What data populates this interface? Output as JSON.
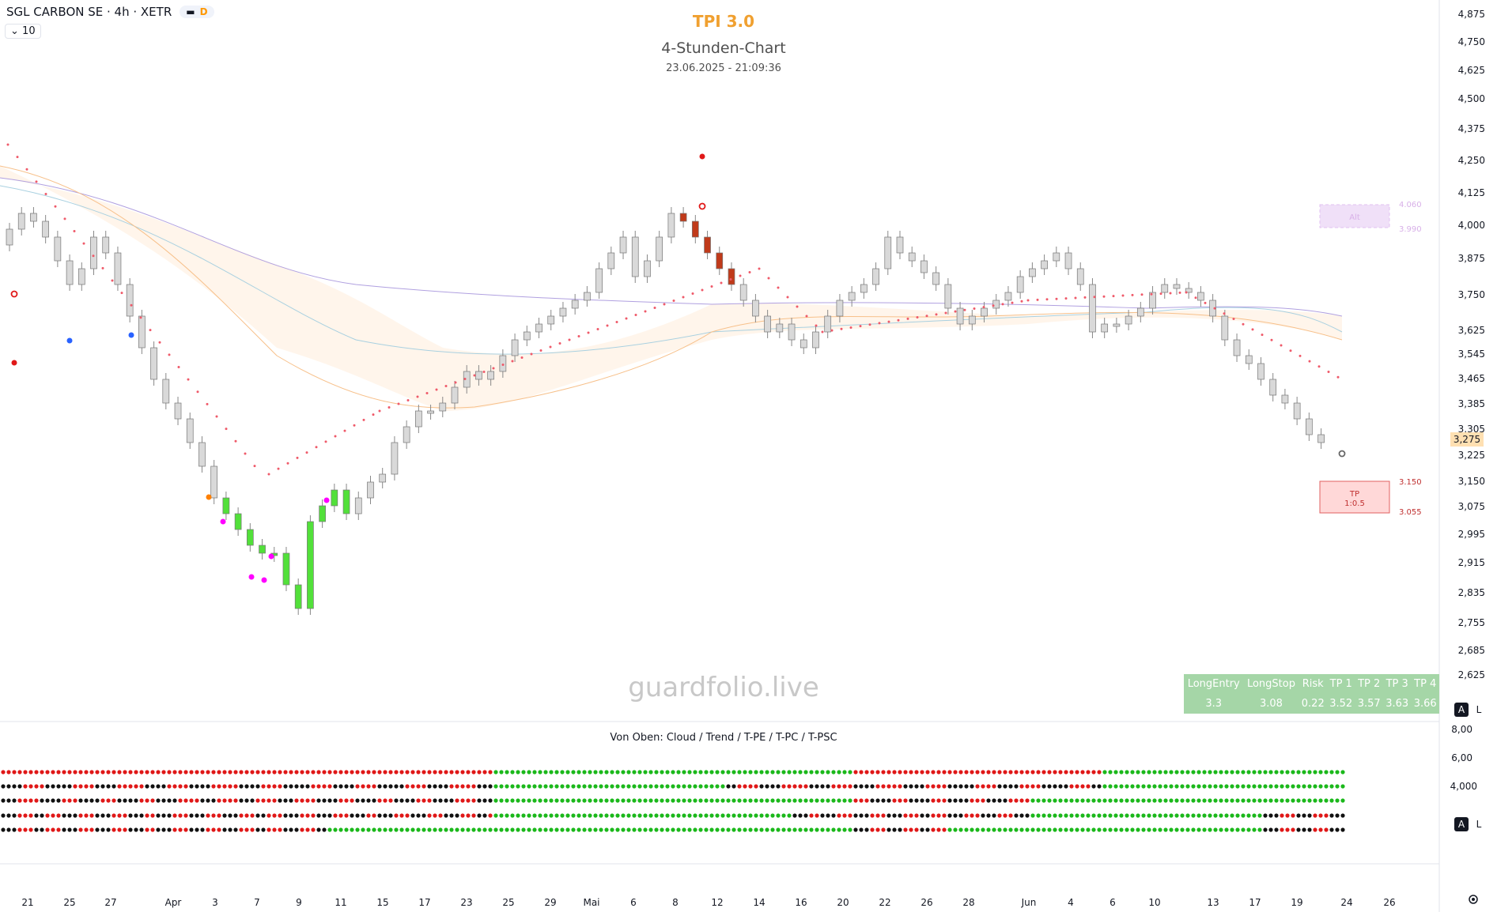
{
  "header": {
    "symbol": "SGL CARBON SE · 4h · XETR",
    "badge_label": "D",
    "interval_value": "10",
    "tpi_title": "TPI 3.0",
    "chart_subtitle": "4-Stunden-Chart",
    "timestamp": "23.06.2025 - 21:09:36"
  },
  "watermark": "guardfolio.live",
  "indicator_caption": "Von Oben: Cloud / Trend / T-PE / T-PC / T-PSC",
  "price_scale": {
    "labels": [
      "4,875",
      "4,750",
      "4,625",
      "4,500",
      "4,375",
      "4,250",
      "4,125",
      "4,000",
      "3,875",
      "3,750",
      "3,625",
      "3,545",
      "3,465",
      "3,385",
      "3,305",
      "3,225",
      "3,150",
      "3,075",
      "2,995",
      "2,915",
      "2,835",
      "2,755",
      "2,685",
      "2,625"
    ],
    "last_price": "3,275"
  },
  "indicator_scale": {
    "labels": [
      "8,00",
      "6,00",
      "4,000"
    ]
  },
  "time_axis": {
    "labels": [
      "21",
      "25",
      "27",
      "Apr",
      "3",
      "7",
      "9",
      "11",
      "15",
      "17",
      "23",
      "25",
      "29",
      "Mai",
      "6",
      "8",
      "12",
      "14",
      "16",
      "20",
      "22",
      "26",
      "28",
      "Jun",
      "4",
      "6",
      "10",
      "13",
      "17",
      "19",
      "24",
      "26"
    ]
  },
  "target_boxes": {
    "alt_label": "Alt",
    "alt_upper": "4.060",
    "alt_lower": "3.990",
    "tp_label": "TP",
    "tp_ratio": "1:0.5",
    "tp_upper": "3.150",
    "tp_lower": "3.055"
  },
  "stats_table": {
    "headers": [
      "LongEntry",
      "LongStop",
      "Risk",
      "TP 1",
      "TP 2",
      "TP 3",
      "TP 4"
    ],
    "values": [
      "3.3",
      "3.08",
      "0.22",
      "3.52",
      "3.57",
      "3.63",
      "3.66"
    ]
  },
  "scale_buttons": {
    "auto": "A",
    "log": "L"
  },
  "colors": {
    "bull_strong": "#52e03a",
    "bear_strong": "#c03a1a",
    "neutral_candle": "#d9d9d9",
    "psar": "#ef5a6a",
    "tpi_title": "#f0a030",
    "dot_green": "#1bb81b",
    "dot_red": "#e01818",
    "dot_black": "#111111",
    "table_bg": "#a5d6a7"
  },
  "icons": {
    "settings": "gear-icon",
    "dropdown": "chevron-down-icon"
  }
}
